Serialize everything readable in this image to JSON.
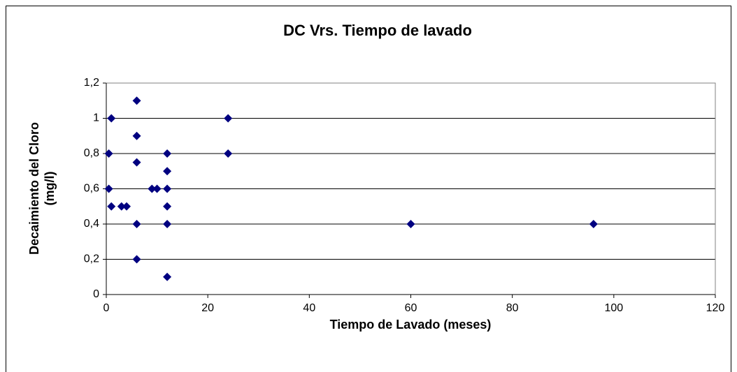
{
  "chart_data": {
    "type": "scatter",
    "title": "DC Vrs. Tiempo de lavado",
    "xlabel": "Tiempo de Lavado (meses)",
    "ylabel": [
      "Decaimiento del Cloro",
      "(mg/l)"
    ],
    "series": [
      {
        "color": "#000080",
        "x": [
          1,
          6,
          24,
          0.5,
          6,
          12,
          24,
          6,
          12,
          0.5,
          9,
          10,
          12,
          1,
          3,
          4,
          12,
          6,
          12,
          60,
          96,
          6,
          12
        ],
        "values": [
          1,
          1.1,
          1,
          0.8,
          0.9,
          0.8,
          0.8,
          0.75,
          0.7,
          0.6,
          0.6,
          0.6,
          0.6,
          0.5,
          0.5,
          0.5,
          0.5,
          0.4,
          0.4,
          0.4,
          0.4,
          0.2,
          0.1
        ]
      }
    ],
    "xlim": [
      0,
      120
    ],
    "xticks": [
      0,
      20,
      40,
      60,
      80,
      100,
      120
    ],
    "ylim": [
      0,
      1.2
    ],
    "yticks": [
      0,
      {
        "value": 0.2,
        "label": "0,2"
      },
      {
        "value": 0.4,
        "label": "0,4"
      },
      {
        "value": 0.6,
        "label": "0,6"
      },
      {
        "value": 0.8,
        "label": "0,8"
      },
      1,
      {
        "value": 1.2,
        "label": "1,2"
      }
    ],
    "grid": true
  }
}
